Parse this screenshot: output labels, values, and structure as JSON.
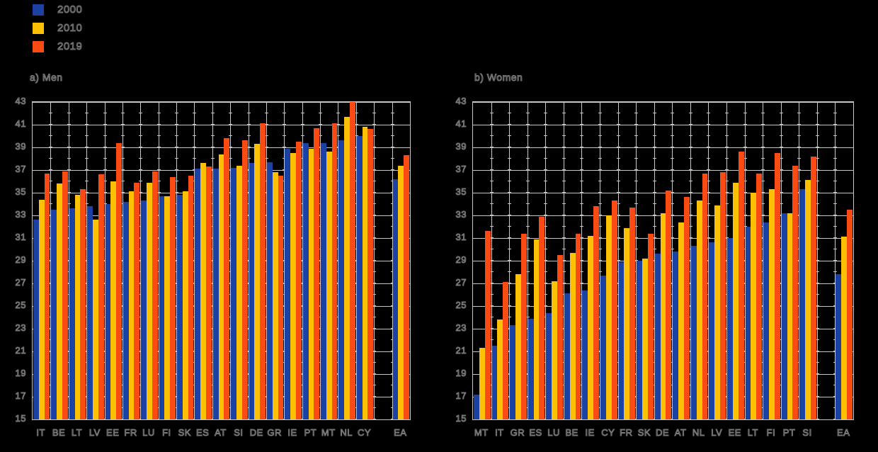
{
  "background": "#000000",
  "colors": {
    "grid": "#c8c8c8",
    "text_fill": "#000000",
    "text_outline": "#7a7a7a"
  },
  "legend": {
    "position": "top-left",
    "items": [
      {
        "label": "2000",
        "color": "#1b41a5"
      },
      {
        "label": "2010",
        "color": "#fcc105"
      },
      {
        "label": "2019",
        "color": "#fc4a13"
      }
    ]
  },
  "chart_data": [
    {
      "panel_title": "a) Men",
      "type": "bar",
      "ylim": [
        15,
        43
      ],
      "ytick_step": 2,
      "yticks": [
        43,
        41,
        39,
        37,
        35,
        33,
        31,
        29,
        27,
        25,
        23,
        21,
        19,
        17,
        15
      ],
      "grid": true,
      "gap_before_last_category": true,
      "categories": [
        "IT",
        "BE",
        "LT",
        "LV",
        "EE",
        "FR",
        "LU",
        "FI",
        "SK",
        "ES",
        "AT",
        "SI",
        "DE",
        "GR",
        "IE",
        "PT",
        "MT",
        "NL",
        "CY",
        "EA"
      ],
      "series": [
        {
          "name": "2000",
          "color": "#1b41a5",
          "values": [
            32.6,
            33.5,
            33.6,
            33.8,
            34.0,
            34.2,
            34.3,
            34.7,
            34.8,
            37.1,
            37.1,
            37.2,
            37.6,
            37.7,
            38.9,
            39.4,
            39.4,
            39.6,
            40.0,
            36.2
          ]
        },
        {
          "name": "2010",
          "color": "#fcc105",
          "values": [
            34.4,
            35.8,
            34.8,
            32.6,
            36.0,
            35.1,
            35.9,
            34.7,
            35.1,
            37.6,
            38.4,
            37.4,
            39.3,
            36.8,
            38.5,
            38.9,
            38.6,
            41.7,
            40.8,
            37.4
          ]
        },
        {
          "name": "2019",
          "color": "#fc4a13",
          "values": [
            36.7,
            36.9,
            35.3,
            36.6,
            39.4,
            35.9,
            36.9,
            36.4,
            36.5,
            37.3,
            39.8,
            39.6,
            41.1,
            36.5,
            39.5,
            40.7,
            41.1,
            43.0,
            40.6,
            38.3
          ]
        }
      ]
    },
    {
      "panel_title": "b) Women",
      "type": "bar",
      "ylim": [
        15,
        43
      ],
      "ytick_step": 2,
      "yticks": [
        43,
        41,
        39,
        37,
        35,
        33,
        31,
        29,
        27,
        25,
        23,
        21,
        19,
        17,
        15
      ],
      "grid": true,
      "gap_before_last_category": true,
      "categories": [
        "MT",
        "IT",
        "GR",
        "ES",
        "LU",
        "BE",
        "IE",
        "CY",
        "FR",
        "SK",
        "DE",
        "AT",
        "NL",
        "LV",
        "EE",
        "LT",
        "FI",
        "PT",
        "SI",
        "EA"
      ],
      "series": [
        {
          "name": "2000",
          "color": "#1b41a5",
          "values": [
            17.2,
            21.5,
            23.3,
            23.9,
            24.4,
            26.1,
            26.4,
            27.7,
            28.9,
            29.0,
            29.6,
            29.8,
            30.3,
            30.6,
            31.0,
            32.0,
            32.4,
            33.2,
            35.3,
            27.8
          ]
        },
        {
          "name": "2010",
          "color": "#fcc105",
          "values": [
            21.3,
            23.8,
            27.8,
            30.9,
            27.2,
            29.7,
            31.2,
            33.0,
            31.9,
            29.2,
            33.2,
            32.4,
            34.3,
            33.9,
            35.9,
            35.0,
            35.3,
            33.2,
            36.1,
            31.1
          ]
        },
        {
          "name": "2019",
          "color": "#fc4a13",
          "values": [
            31.6,
            27.1,
            31.4,
            32.9,
            29.5,
            31.4,
            33.8,
            34.3,
            33.7,
            31.4,
            35.2,
            34.6,
            36.7,
            36.8,
            38.6,
            36.7,
            38.5,
            37.4,
            38.2,
            33.5
          ]
        }
      ]
    }
  ]
}
